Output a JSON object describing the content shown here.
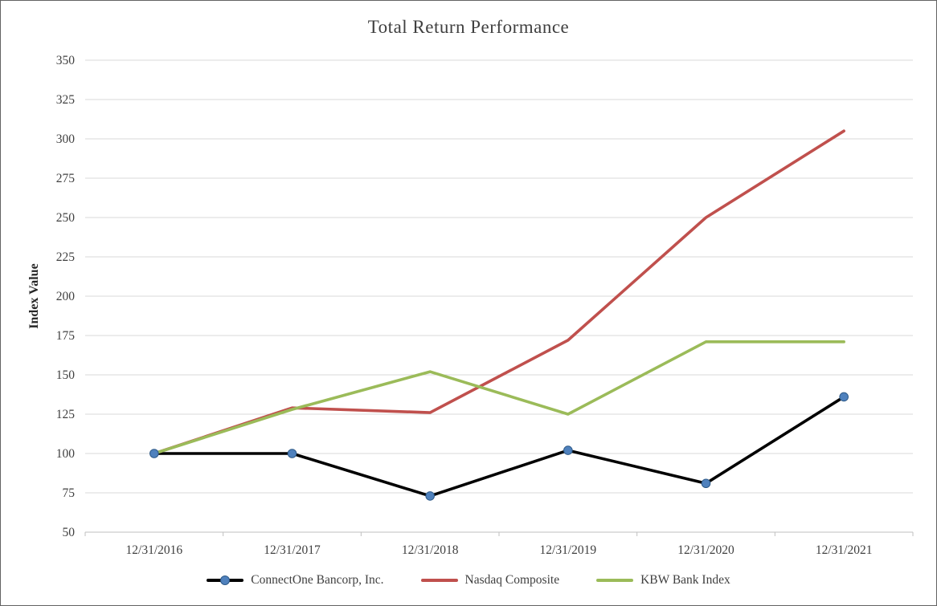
{
  "chart_data": {
    "type": "line",
    "title": "Total Return Performance",
    "ylabel": "Index Value",
    "xlabel": "",
    "categories": [
      "12/31/2016",
      "12/31/2017",
      "12/31/2018",
      "12/31/2019",
      "12/31/2020",
      "12/31/2021"
    ],
    "ylim": [
      50,
      350
    ],
    "yticks": [
      50,
      75,
      100,
      125,
      150,
      175,
      200,
      225,
      250,
      275,
      300,
      325,
      350
    ],
    "grid": "horizontal",
    "legend_position": "bottom",
    "series": [
      {
        "name": "ConnectOne Bancorp, Inc.",
        "color": "#000000",
        "marker": "circle",
        "marker_color": "#4F81BD",
        "marker_edge_color": "#2E5A88",
        "values": [
          100,
          100,
          73,
          102,
          81,
          136
        ]
      },
      {
        "name": "Nasdaq Composite",
        "color": "#C0504D",
        "marker": "none",
        "values": [
          100,
          129,
          126,
          172,
          250,
          305
        ]
      },
      {
        "name": "KBW Bank Index",
        "color": "#9BBB59",
        "marker": "none",
        "values": [
          100,
          128,
          152,
          125,
          171,
          171
        ]
      }
    ]
  },
  "colors": {
    "background": "#FFFFFF",
    "border": "#636363",
    "gridline": "#D9D9D9",
    "axis_line": "#BFBFBF",
    "axis_text": "#404040",
    "title_text": "#404040"
  }
}
